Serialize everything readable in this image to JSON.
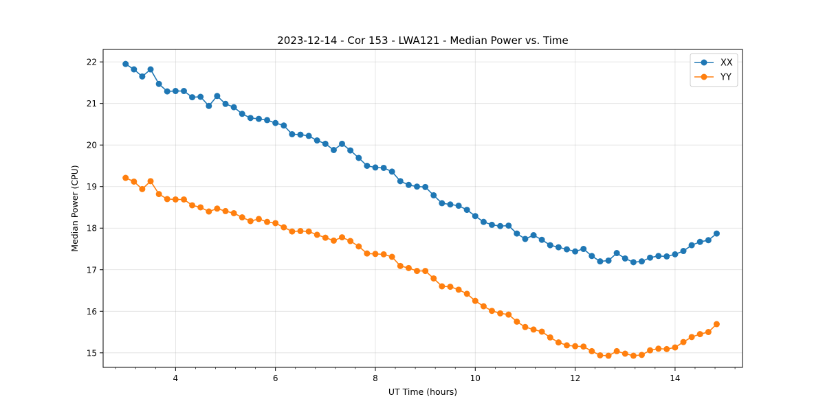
{
  "chart_data": {
    "type": "line",
    "title": "2023-12-14 - Cor 153 - LWA121 - Median Power vs. Time",
    "xlabel": "UT Time (hours)",
    "ylabel": "Median Power (CPU)",
    "xlim": [
      2.55,
      15.35
    ],
    "ylim": [
      14.65,
      22.3
    ],
    "xticks": [
      4,
      6,
      8,
      10,
      12,
      14
    ],
    "xtick_labels": [
      "4",
      "6",
      "8",
      "10",
      "12",
      "14"
    ],
    "yticks": [
      15,
      16,
      17,
      18,
      19,
      20,
      21,
      22
    ],
    "ytick_labels": [
      "15",
      "16",
      "17",
      "18",
      "19",
      "20",
      "21",
      "22"
    ],
    "grid": true,
    "legend_position": "top-right",
    "x": [
      3.0,
      3.167,
      3.333,
      3.5,
      3.667,
      3.833,
      4.0,
      4.167,
      4.333,
      4.5,
      4.667,
      4.833,
      5.0,
      5.167,
      5.333,
      5.5,
      5.667,
      5.833,
      6.0,
      6.167,
      6.333,
      6.5,
      6.667,
      6.833,
      7.0,
      7.167,
      7.333,
      7.5,
      7.667,
      7.833,
      8.0,
      8.167,
      8.333,
      8.5,
      8.667,
      8.833,
      9.0,
      9.167,
      9.333,
      9.5,
      9.667,
      9.833,
      10.0,
      10.167,
      10.333,
      10.5,
      10.667,
      10.833,
      11.0,
      11.167,
      11.333,
      11.5,
      11.667,
      11.833,
      12.0,
      12.167,
      12.333,
      12.5,
      12.667,
      12.833,
      13.0,
      13.167,
      13.333,
      13.5,
      13.667,
      13.833,
      14.0,
      14.167,
      14.333,
      14.5,
      14.667,
      14.833
    ],
    "series": [
      {
        "name": "XX",
        "color": "#1f77b4",
        "values": [
          21.95,
          21.82,
          21.65,
          21.82,
          21.47,
          21.29,
          21.3,
          21.3,
          21.15,
          21.16,
          20.94,
          21.18,
          20.99,
          20.91,
          20.75,
          20.65,
          20.63,
          20.6,
          20.53,
          20.47,
          20.26,
          20.25,
          20.22,
          20.11,
          20.03,
          19.88,
          20.03,
          19.87,
          19.69,
          19.5,
          19.46,
          19.45,
          19.36,
          19.13,
          19.04,
          19.0,
          18.99,
          18.79,
          18.6,
          18.57,
          18.54,
          18.44,
          18.29,
          18.15,
          18.08,
          18.05,
          18.06,
          17.87,
          17.74,
          17.83,
          17.72,
          17.59,
          17.54,
          17.49,
          17.44,
          17.5,
          17.33,
          17.2,
          17.22,
          17.4,
          17.27,
          17.18,
          17.2,
          17.29,
          17.33,
          17.32,
          17.37,
          17.45,
          17.59,
          17.67,
          17.71,
          17.87
        ]
      },
      {
        "name": "YY",
        "color": "#ff7f0e",
        "values": [
          19.21,
          19.12,
          18.94,
          19.13,
          18.82,
          18.7,
          18.69,
          18.69,
          18.55,
          18.5,
          18.4,
          18.47,
          18.41,
          18.36,
          18.26,
          18.17,
          18.22,
          18.15,
          18.12,
          18.02,
          17.92,
          17.93,
          17.92,
          17.84,
          17.77,
          17.7,
          17.78,
          17.69,
          17.56,
          17.39,
          17.38,
          17.37,
          17.31,
          17.09,
          17.04,
          16.97,
          16.97,
          16.79,
          16.6,
          16.59,
          16.52,
          16.42,
          16.25,
          16.12,
          16.01,
          15.95,
          15.92,
          15.75,
          15.62,
          15.56,
          15.51,
          15.37,
          15.25,
          15.18,
          15.16,
          15.15,
          15.04,
          14.94,
          14.93,
          15.04,
          14.98,
          14.93,
          14.95,
          15.06,
          15.1,
          15.09,
          15.13,
          15.26,
          15.38,
          15.45,
          15.5,
          15.69
        ]
      }
    ]
  }
}
